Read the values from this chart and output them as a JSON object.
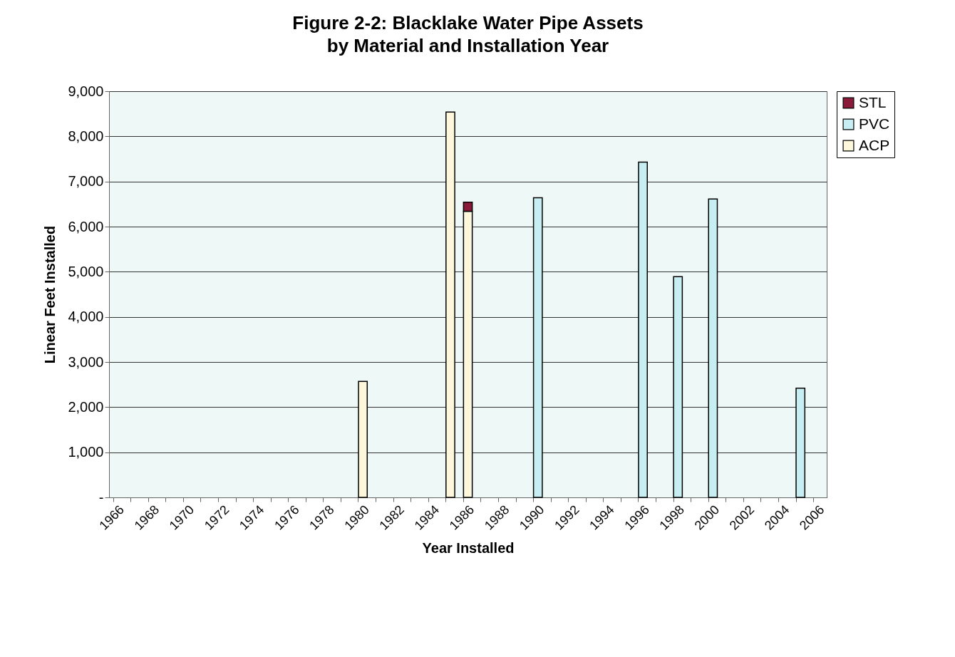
{
  "chart_data": {
    "type": "bar",
    "title": "Figure 2-2: Blacklake Water Pipe Assets\nby Material and Installation Year",
    "xlabel": "Year Installed",
    "ylabel": "Linear Feet Installed",
    "categories": [
      "1966",
      null,
      "1968",
      null,
      "1970",
      null,
      "1972",
      null,
      "1974",
      null,
      "1976",
      null,
      "1978",
      null,
      "1980",
      null,
      "1982",
      null,
      "1984",
      null,
      "1986",
      null,
      "1988",
      null,
      "1990",
      null,
      "1992",
      null,
      "1994",
      null,
      "1996",
      null,
      "1998",
      null,
      "2000",
      null,
      "2002",
      null,
      "2004",
      null,
      "2006"
    ],
    "series": [
      {
        "name": "ACP",
        "color": "#fdf8dc",
        "values": [
          null,
          null,
          null,
          null,
          null,
          null,
          null,
          null,
          null,
          null,
          null,
          null,
          null,
          null,
          2570,
          null,
          null,
          null,
          null,
          8540,
          6340,
          null,
          null,
          null,
          null,
          null,
          null,
          null,
          null,
          null,
          null,
          null,
          null,
          null,
          null,
          null,
          null,
          null,
          null,
          null,
          null
        ]
      },
      {
        "name": "PVC",
        "color": "#c6eef3",
        "values": [
          null,
          null,
          null,
          null,
          null,
          null,
          null,
          null,
          null,
          null,
          null,
          null,
          null,
          null,
          null,
          null,
          null,
          null,
          null,
          null,
          null,
          null,
          null,
          null,
          6640,
          null,
          null,
          null,
          null,
          null,
          7430,
          null,
          4890,
          null,
          6610,
          null,
          null,
          null,
          null,
          2420,
          null
        ]
      },
      {
        "name": "STL",
        "color": "#8b1a3a",
        "values": [
          null,
          null,
          null,
          null,
          null,
          null,
          null,
          null,
          null,
          null,
          null,
          null,
          null,
          null,
          null,
          null,
          null,
          null,
          null,
          null,
          200,
          null,
          null,
          null,
          null,
          null,
          null,
          null,
          null,
          null,
          null,
          null,
          null,
          null,
          null,
          null,
          null,
          null,
          null,
          null,
          null
        ]
      }
    ],
    "stacked": true,
    "ylim": [
      0,
      9000
    ],
    "yticks": [
      {
        "value": 0,
        "label": "-"
      },
      {
        "value": 1000,
        "label": "1,000"
      },
      {
        "value": 2000,
        "label": "2,000"
      },
      {
        "value": 3000,
        "label": "3,000"
      },
      {
        "value": 4000,
        "label": "4,000"
      },
      {
        "value": 5000,
        "label": "5,000"
      },
      {
        "value": 6000,
        "label": "6,000"
      },
      {
        "value": 7000,
        "label": "7,000"
      },
      {
        "value": 8000,
        "label": "8,000"
      },
      {
        "value": 9000,
        "label": "9,000"
      }
    ],
    "grid": "y",
    "legend": "right"
  }
}
